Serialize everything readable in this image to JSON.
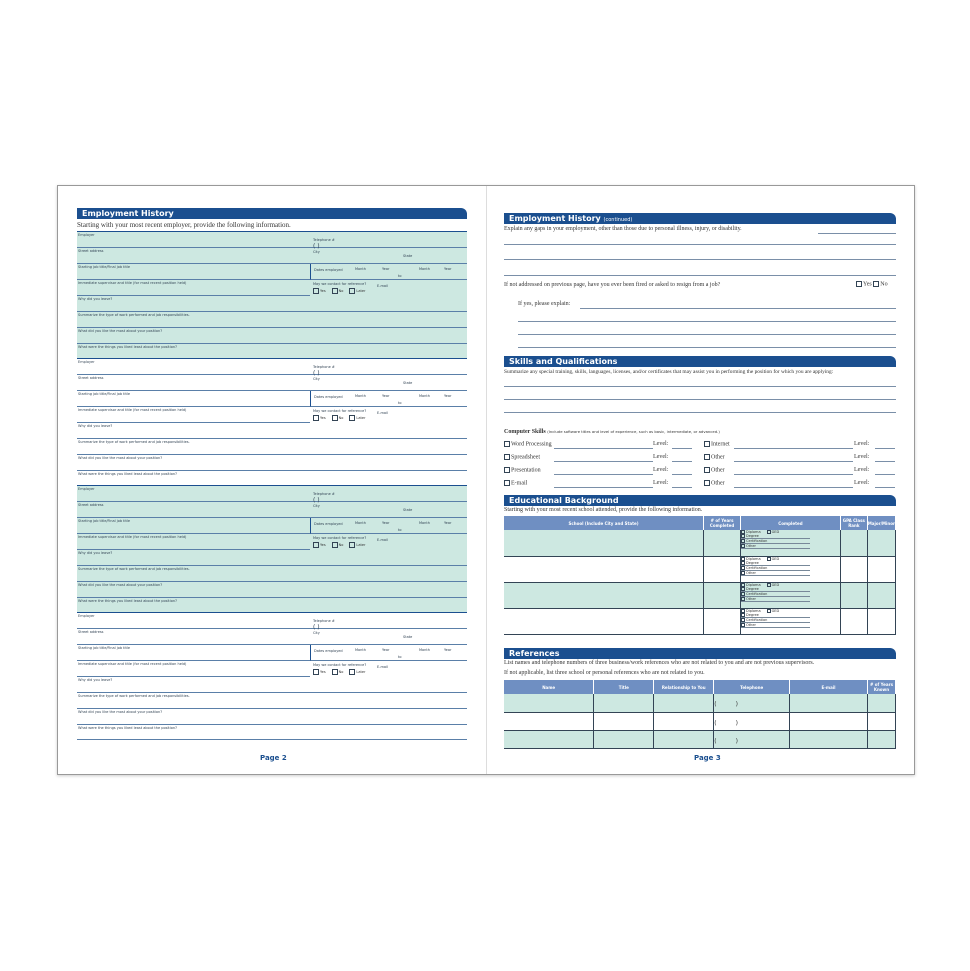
{
  "left_page": {
    "header": "Employment History",
    "intro": "Starting with your most recent employer, provide the following information.",
    "block_labels": {
      "employer": "Employer",
      "telephone": "Telephone #",
      "phone_parens": "(          )",
      "street": "Street address",
      "city": "City",
      "state": "State",
      "job_title": "Starting job title/Final job title",
      "dates": "Dates employed",
      "month": "Month",
      "year": "Year",
      "to": "to",
      "supervisor": "Immediate supervisor and title (for most recent position held)",
      "contact": "May we contact for reference?",
      "email": "E-mail",
      "yes": "Yes",
      "no": "No",
      "later": "Later",
      "why_leave": "Why did you leave?",
      "summarize": "Summarize the type of work performed and job responsibilities.",
      "liked_most": "What did you like the most about your position?",
      "liked_least": "What were the things you liked least about the position?"
    },
    "block_count": 4,
    "page_number": "Page 2"
  },
  "right_page": {
    "employment_continued": {
      "header": "Employment History",
      "header_suffix": "(continued)",
      "gaps": "Explain any gaps in your employment, other than those due to personal illness, injury, or disability.",
      "fired": "If not addressed on previous page, have you ever been fired or asked to resign from a job?",
      "yes": "Yes",
      "no": "No",
      "if_yes": "If yes, please explain:"
    },
    "skills": {
      "header": "Skills and Qualifications",
      "summarize": "Summarize any special training, skills, languages, licenses, and/or certificates that may assist you in performing the position for which you are applying:",
      "computer_title": "Computer Skills",
      "computer_note": "(Include software titles and level of experience, such as basic, intermediate, or advanced.)",
      "level": "Level:",
      "left_items": [
        "Word Processing",
        "Spreadsheet",
        "Presentation",
        "E-mail"
      ],
      "right_items": [
        "Internet",
        "Other",
        "Other",
        "Other"
      ]
    },
    "education": {
      "header": "Educational Background",
      "intro": "Starting with your most recent school attended, provide the following information.",
      "columns": [
        "School (Include City and State)",
        "# of Years Completed",
        "Completed",
        "GPA Class Rank",
        "Major/Minor"
      ],
      "completed_options": [
        "Diploma",
        "GED",
        "Degree",
        "Certification",
        "Other"
      ]
    },
    "references": {
      "header": "References",
      "intro1": "List names and telephone numbers of three business/work references who are not related to you and are not previous supervisors.",
      "intro2": "If not applicable, list three school or personal references who are not related to you.",
      "columns": [
        "Name",
        "Title",
        "Relationship to You",
        "Telephone",
        "E-mail",
        "# of Years Known"
      ],
      "phone_parens": "(          )"
    },
    "page_number": "Page 3"
  },
  "colors": {
    "header_blue": "#1b4f8f",
    "table_header": "#6f8fc2",
    "field_shade": "#cde8e1"
  }
}
